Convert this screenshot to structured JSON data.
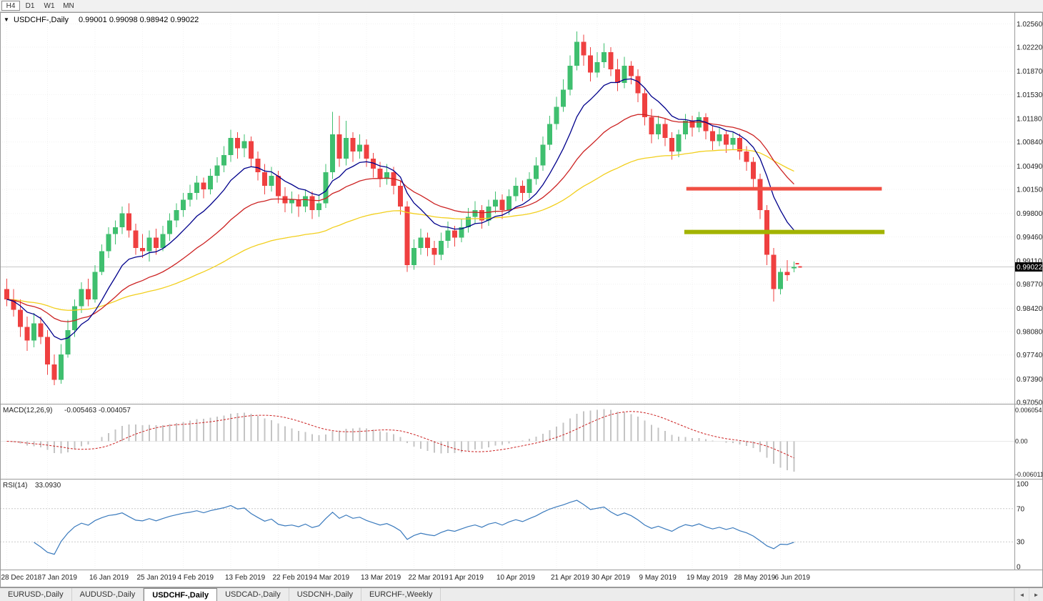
{
  "toolbar": {
    "timeframes": [
      {
        "label": "H4",
        "active": true
      },
      {
        "label": "D1",
        "active": false
      },
      {
        "label": "W1",
        "active": false
      },
      {
        "label": "MN",
        "active": false
      }
    ]
  },
  "chart": {
    "dropdown_icon": "▼",
    "title": "USDCHF-,Daily",
    "ohlc": "0.99001 0.99098 0.98942 0.99022",
    "current_price_label": "0.99022"
  },
  "indicators": {
    "macd": {
      "label": "MACD(12,26,9)",
      "values": "-0.005463 -0.004057"
    },
    "rsi": {
      "label": "RSI(14)",
      "value": "33.0930"
    }
  },
  "chart_data": [
    {
      "type": "candlestick",
      "symbol": "USDCHF-",
      "timeframe": "Daily",
      "open": "0.99001",
      "high": "0.99098",
      "low": "0.98942",
      "close": "0.99022",
      "current_price": 0.99022,
      "ylim": [
        0.9703,
        1.0273
      ],
      "up_color": "#3fbf6f",
      "down_color": "#ef4040",
      "y_ticks": [
        "1.02560",
        "1.02220",
        "1.01870",
        "1.01530",
        "1.01180",
        "1.00840",
        "1.00490",
        "1.00150",
        "0.99800",
        "0.99460",
        "0.99110",
        "0.98770",
        "0.98420",
        "0.98080",
        "0.97740",
        "0.97390",
        "0.97050"
      ],
      "x_labels": [
        {
          "index": 0,
          "label": "28 Dec 2018"
        },
        {
          "index": 6,
          "label": "7 Jan 2019"
        },
        {
          "index": 13,
          "label": "16 Jan 2019"
        },
        {
          "index": 20,
          "label": "25 Jan 2019"
        },
        {
          "index": 26,
          "label": "4 Feb 2019"
        },
        {
          "index": 33,
          "label": "13 Feb 2019"
        },
        {
          "index": 40,
          "label": "22 Feb 2019"
        },
        {
          "index": 46,
          "label": "4 Mar 2019"
        },
        {
          "index": 53,
          "label": "13 Mar 2019"
        },
        {
          "index": 60,
          "label": "22 Mar 2019"
        },
        {
          "index": 66,
          "label": "1 Apr 2019"
        },
        {
          "index": 73,
          "label": "10 Apr 2019"
        },
        {
          "index": 81,
          "label": "21 Apr 2019"
        },
        {
          "index": 87,
          "label": "30 Apr 2019"
        },
        {
          "index": 94,
          "label": "9 May 2019"
        },
        {
          "index": 101,
          "label": "19 May 2019"
        },
        {
          "index": 108,
          "label": "28 May 2019"
        },
        {
          "index": 114,
          "label": "6 Jun 2019"
        }
      ],
      "right_shift_slots": 32,
      "moving_averages": [
        {
          "name": "ma-fast-line",
          "method": "ema",
          "period": 10,
          "color": "#00008b"
        },
        {
          "name": "ma-medium-line",
          "method": "ema",
          "period": 25,
          "color": "#cc2222"
        },
        {
          "name": "ma-slow-line",
          "method": "ema",
          "period": 60,
          "color": "#f2cf1d"
        }
      ],
      "hlines": [
        {
          "name": "resistance-line",
          "price": 1.0016,
          "from_slot": 100.5,
          "to_slot": 129.3,
          "color": "#f04f43",
          "width": 5
        },
        {
          "name": "support-line",
          "price": 0.9953,
          "from_slot": 100.2,
          "to_slot": 129.7,
          "color": "#a2b300",
          "width": 6
        }
      ],
      "candles": [
        [
          0.987,
          0.9885,
          0.9845,
          0.9855
        ],
        [
          0.9855,
          0.987,
          0.983,
          0.984
        ],
        [
          0.984,
          0.9855,
          0.98,
          0.9815
        ],
        [
          0.9815,
          0.983,
          0.978,
          0.9795
        ],
        [
          0.9795,
          0.9835,
          0.9785,
          0.982
        ],
        [
          0.982,
          0.983,
          0.979,
          0.98
        ],
        [
          0.98,
          0.981,
          0.9745,
          0.976
        ],
        [
          0.976,
          0.9775,
          0.973,
          0.9738
        ],
        [
          0.9738,
          0.979,
          0.9732,
          0.9775
        ],
        [
          0.9775,
          0.9825,
          0.977,
          0.981
        ],
        [
          0.981,
          0.9855,
          0.98,
          0.9845
        ],
        [
          0.9845,
          0.988,
          0.9835,
          0.987
        ],
        [
          0.987,
          0.9885,
          0.9845,
          0.9855
        ],
        [
          0.9855,
          0.9905,
          0.985,
          0.9895
        ],
        [
          0.9895,
          0.9935,
          0.989,
          0.9925
        ],
        [
          0.9925,
          0.996,
          0.9915,
          0.995
        ],
        [
          0.995,
          0.997,
          0.9935,
          0.996
        ],
        [
          0.996,
          0.999,
          0.995,
          0.998
        ],
        [
          0.998,
          0.9995,
          0.9945,
          0.9955
        ],
        [
          0.9955,
          0.9965,
          0.992,
          0.993
        ],
        [
          0.993,
          0.995,
          0.9915,
          0.9925
        ],
        [
          0.9925,
          0.9955,
          0.991,
          0.9945
        ],
        [
          0.9945,
          0.9958,
          0.992,
          0.993
        ],
        [
          0.993,
          0.9962,
          0.9925,
          0.995
        ],
        [
          0.995,
          0.998,
          0.994,
          0.997
        ],
        [
          0.997,
          0.9995,
          0.996,
          0.9985
        ],
        [
          0.9985,
          1.001,
          0.9975,
          1.0
        ],
        [
          1.0,
          1.0022,
          0.999,
          1.001
        ],
        [
          1.001,
          1.0035,
          1.0,
          1.0025
        ],
        [
          1.0025,
          1.0032,
          1.0002,
          1.0015
        ],
        [
          1.0015,
          1.0045,
          1.0008,
          1.0035
        ],
        [
          1.0035,
          1.0062,
          1.0025,
          1.005
        ],
        [
          1.005,
          1.0078,
          1.004,
          1.0065
        ],
        [
          1.0065,
          1.0102,
          1.0055,
          1.009
        ],
        [
          1.009,
          1.0098,
          1.006,
          1.0075
        ],
        [
          1.0075,
          1.0095,
          1.0062,
          1.0085
        ],
        [
          1.0085,
          1.0092,
          1.0048,
          1.006
        ],
        [
          1.006,
          1.007,
          1.0028,
          1.004
        ],
        [
          1.004,
          1.0052,
          1.0008,
          1.002
        ],
        [
          1.002,
          1.0048,
          1.0012,
          1.0035
        ],
        [
          1.0035,
          1.0042,
          0.9995,
          1.0005
        ],
        [
          1.0005,
          1.0018,
          0.9982,
          0.9995
        ],
        [
          0.9995,
          1.0012,
          0.998,
          1.0
        ],
        [
          1.0,
          1.0008,
          0.9975,
          0.999
        ],
        [
          0.999,
          1.0015,
          0.9982,
          1.0005
        ],
        [
          1.0005,
          1.0012,
          0.9972,
          0.9985
        ],
        [
          0.9985,
          1.0008,
          0.9975,
          0.9995
        ],
        [
          0.9995,
          1.0052,
          0.9988,
          1.004
        ],
        [
          1.004,
          1.0128,
          1.003,
          1.0095
        ],
        [
          1.0095,
          1.0122,
          1.0048,
          1.006
        ],
        [
          1.006,
          1.0115,
          1.005,
          1.009
        ],
        [
          1.009,
          1.0098,
          1.0055,
          1.007
        ],
        [
          1.007,
          1.0095,
          1.006,
          1.008
        ],
        [
          1.008,
          1.0088,
          1.0048,
          1.006
        ],
        [
          1.006,
          1.0068,
          1.0032,
          1.0045
        ],
        [
          1.0045,
          1.0055,
          1.0018,
          1.003
        ],
        [
          1.003,
          1.0052,
          1.0022,
          1.004
        ],
        [
          1.004,
          1.0048,
          1.0008,
          1.002
        ],
        [
          1.002,
          1.0028,
          0.9978,
          0.999
        ],
        [
          0.999,
          0.9998,
          0.9895,
          0.9905
        ],
        [
          0.9905,
          0.9942,
          0.9898,
          0.993
        ],
        [
          0.993,
          0.9958,
          0.992,
          0.9945
        ],
        [
          0.9945,
          0.9952,
          0.9918,
          0.993
        ],
        [
          0.993,
          0.994,
          0.9905,
          0.992
        ],
        [
          0.992,
          0.9952,
          0.9912,
          0.994
        ],
        [
          0.994,
          0.9968,
          0.993,
          0.9955
        ],
        [
          0.9955,
          0.9962,
          0.9932,
          0.9945
        ],
        [
          0.9945,
          0.9972,
          0.9938,
          0.996
        ],
        [
          0.996,
          0.9988,
          0.9952,
          0.9975
        ],
        [
          0.9975,
          0.9998,
          0.9965,
          0.9985
        ],
        [
          0.9985,
          0.9992,
          0.9958,
          0.997
        ],
        [
          0.997,
          1.0,
          0.9962,
          0.999
        ],
        [
          0.999,
          1.0012,
          0.998,
          1.0
        ],
        [
          1.0,
          1.0008,
          0.9972,
          0.9985
        ],
        [
          0.9985,
          1.0015,
          0.9978,
          1.0005
        ],
        [
          1.0005,
          1.0032,
          0.9998,
          1.002
        ],
        [
          1.002,
          1.0028,
          0.9998,
          1.001
        ],
        [
          1.001,
          1.004,
          1.0002,
          1.003
        ],
        [
          1.003,
          1.0062,
          1.0022,
          1.005
        ],
        [
          1.005,
          1.0092,
          1.0042,
          1.008
        ],
        [
          1.008,
          1.0122,
          1.0072,
          1.011
        ],
        [
          1.011,
          1.015,
          1.0102,
          1.0135
        ],
        [
          1.0135,
          1.0175,
          1.0128,
          1.016
        ],
        [
          1.016,
          1.021,
          1.0152,
          1.0195
        ],
        [
          1.0195,
          1.0245,
          1.0188,
          1.023
        ],
        [
          1.023,
          1.024,
          1.0195,
          1.021
        ],
        [
          1.021,
          1.0222,
          1.0172,
          1.0185
        ],
        [
          1.0185,
          1.0215,
          1.0178,
          1.02
        ],
        [
          1.02,
          1.0228,
          1.0192,
          1.0215
        ],
        [
          1.0215,
          1.0222,
          1.018,
          1.019
        ],
        [
          1.019,
          1.0205,
          1.0158,
          1.017
        ],
        [
          1.017,
          1.0208,
          1.0162,
          1.0195
        ],
        [
          1.0195,
          1.0202,
          1.0168,
          1.018
        ],
        [
          1.018,
          1.019,
          1.0142,
          1.0155
        ],
        [
          1.0155,
          1.0162,
          1.0108,
          1.012
        ],
        [
          1.012,
          1.0132,
          1.0082,
          1.0095
        ],
        [
          1.0095,
          1.0122,
          1.0088,
          1.011
        ],
        [
          1.011,
          1.0118,
          1.0078,
          1.009
        ],
        [
          1.009,
          1.0098,
          1.0058,
          1.007
        ],
        [
          1.007,
          1.0102,
          1.0062,
          1.0095
        ],
        [
          1.0095,
          1.0125,
          1.0088,
          1.0115
        ],
        [
          1.0115,
          1.0122,
          1.0092,
          1.0105
        ],
        [
          1.0105,
          1.0128,
          1.0098,
          1.012
        ],
        [
          1.012,
          1.0126,
          1.0088,
          1.01
        ],
        [
          1.01,
          1.0108,
          1.0072,
          1.0085
        ],
        [
          1.0085,
          1.0105,
          1.0078,
          1.0095
        ],
        [
          1.0095,
          1.01,
          1.0068,
          1.008
        ],
        [
          1.008,
          1.0098,
          1.0072,
          1.009
        ],
        [
          1.009,
          1.0096,
          1.0058,
          1.007
        ],
        [
          1.007,
          1.0078,
          1.0042,
          1.0055
        ],
        [
          1.0055,
          1.0062,
          1.0018,
          1.003
        ],
        [
          1.003,
          1.0038,
          0.9972,
          0.9985
        ],
        [
          0.9985,
          0.9992,
          0.9905,
          0.992
        ],
        [
          0.992,
          0.993,
          0.9852,
          0.987
        ],
        [
          0.987,
          0.99,
          0.9862,
          0.9895
        ],
        [
          0.9895,
          0.9912,
          0.9882,
          0.989
        ],
        [
          0.99001,
          0.99098,
          0.98942,
          0.99022
        ]
      ]
    },
    {
      "type": "macd",
      "label": "MACD(12,26,9)",
      "fast": 12,
      "slow": 26,
      "signal": 9,
      "current_values": [
        -0.005463,
        -0.004057
      ],
      "y_ticks": [
        "0.006054",
        "0.00",
        "-0.006011"
      ],
      "histogram_color": "#c4c4c4",
      "signal_color": "#cc2222"
    },
    {
      "type": "rsi",
      "label": "RSI(14)",
      "period": 14,
      "current_value": 33.093,
      "levels": [
        70,
        30
      ],
      "y_ticks": [
        "100",
        "70",
        "30",
        "0"
      ],
      "line_color": "#3a7abd"
    }
  ],
  "tabs": {
    "items": [
      {
        "label": "EURUSD-,Daily",
        "active": false
      },
      {
        "label": "AUDUSD-,Daily",
        "active": false
      },
      {
        "label": "USDCHF-,Daily",
        "active": true
      },
      {
        "label": "USDCAD-,Daily",
        "active": false
      },
      {
        "label": "USDCNH-,Daily",
        "active": false
      },
      {
        "label": "EURCHF-,Weekly",
        "active": false
      }
    ],
    "scroll_left_icon": "◄",
    "scroll_right_icon": "►"
  }
}
